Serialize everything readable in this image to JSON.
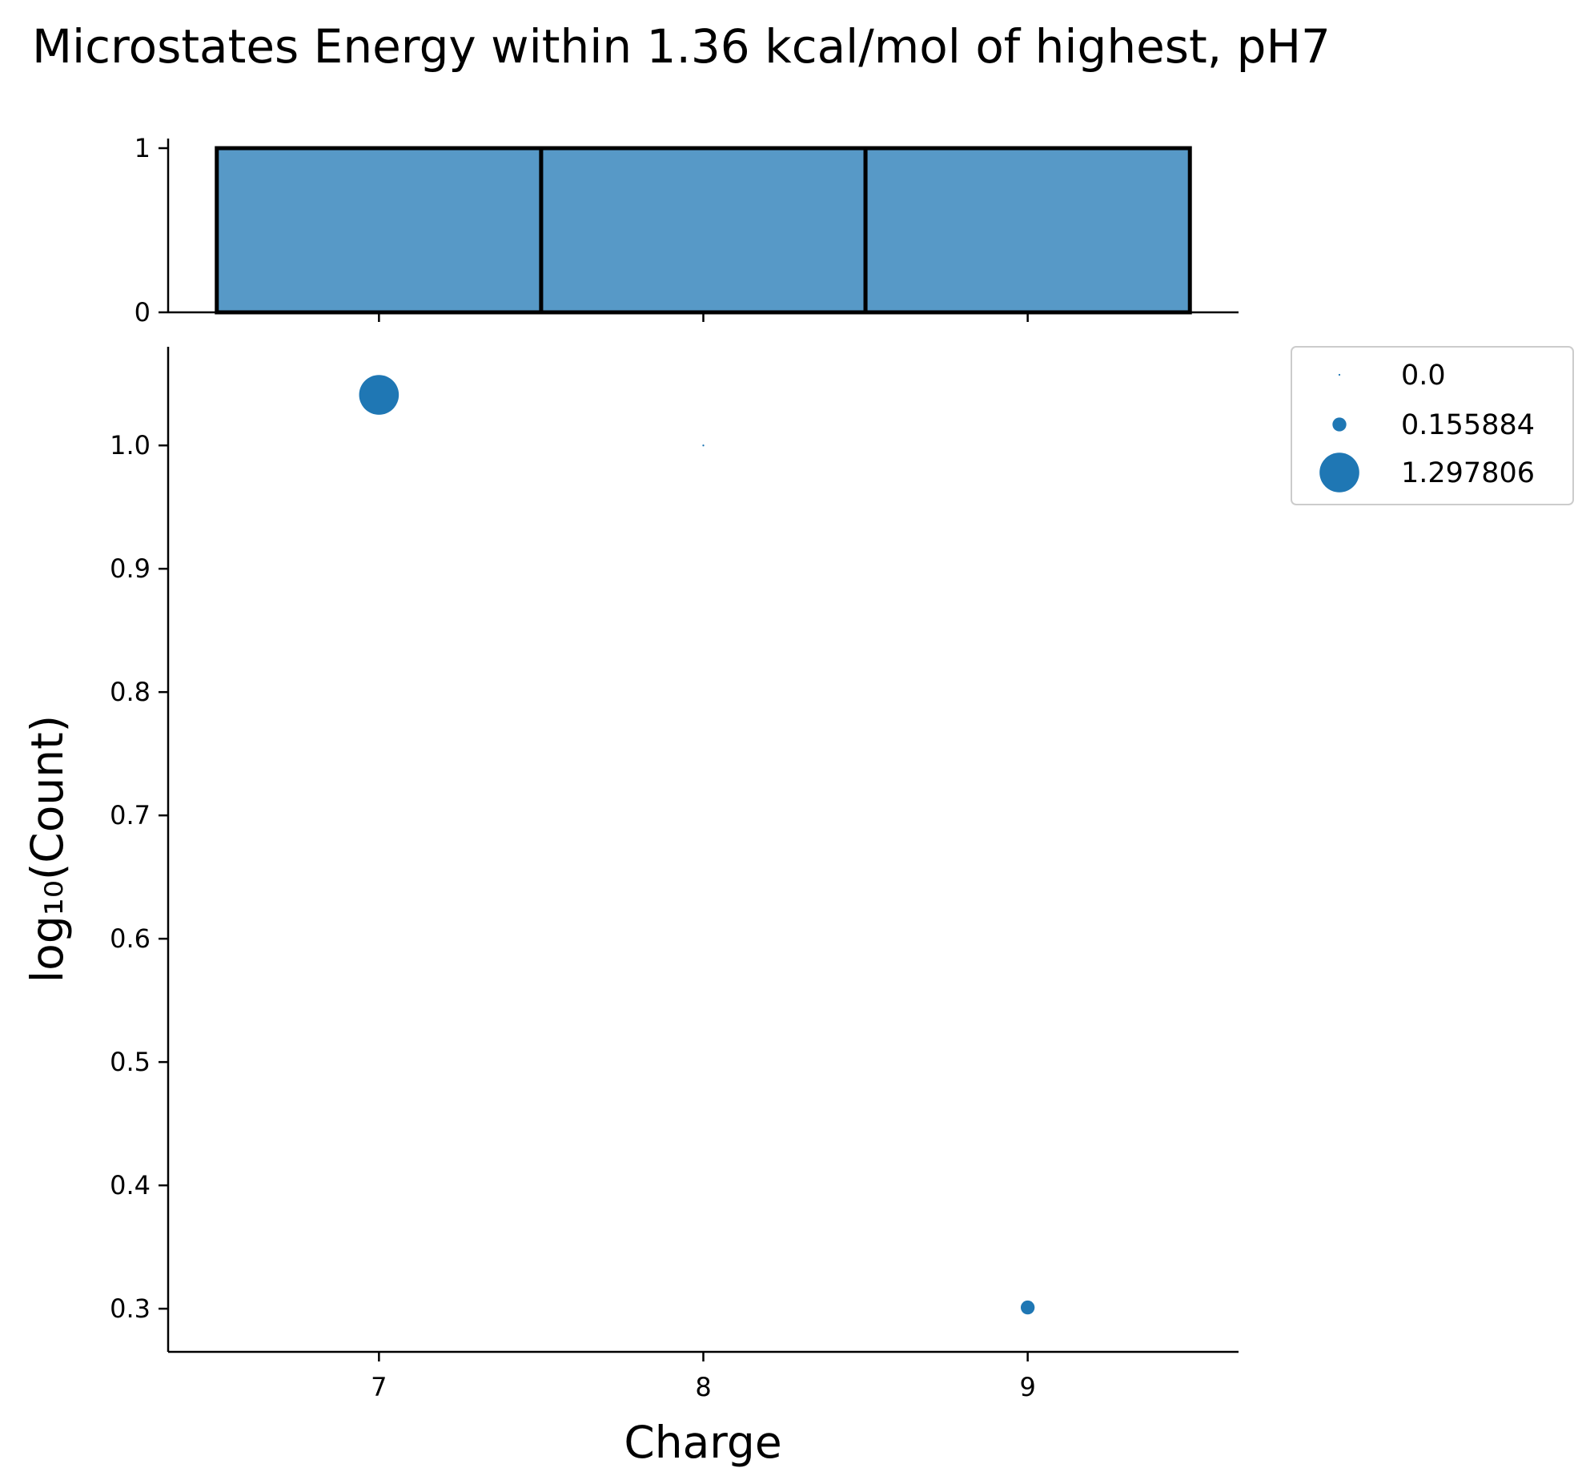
{
  "chart_data": {
    "title": "Microstates Energy within 1.36 kcal/mol of highest, pH7",
    "marginal_histogram": {
      "type": "bar",
      "categories": [
        7,
        8,
        9
      ],
      "values": [
        1,
        1,
        1
      ],
      "ylim": [
        0,
        1
      ],
      "yticks": [
        "0",
        "1"
      ],
      "bar_color": "#5799c7",
      "edge_color": "#000000"
    },
    "scatter": {
      "type": "scatter",
      "xlabel": "Charge",
      "ylabel": "log₁₀(Count)",
      "xticks": [
        "7",
        "8",
        "9"
      ],
      "yticks": [
        "0.3",
        "0.4",
        "0.5",
        "0.6",
        "0.7",
        "0.8",
        "0.9",
        "1.0"
      ],
      "xlim": [
        6.35,
        9.65
      ],
      "ylim": [
        0.265,
        1.08
      ],
      "points": [
        {
          "x": 7,
          "y": 1.041,
          "size": 1.297806
        },
        {
          "x": 8,
          "y": 1.0,
          "size": 0.0
        },
        {
          "x": 9,
          "y": 0.301,
          "size": 0.155884
        }
      ],
      "color": "#1f77b4"
    },
    "legend": {
      "position": "outside-top-right",
      "entries": [
        {
          "label": "0.0",
          "size": 0.0
        },
        {
          "label": "0.155884",
          "size": 0.155884
        },
        {
          "label": "1.297806",
          "size": 1.297806
        }
      ]
    }
  }
}
